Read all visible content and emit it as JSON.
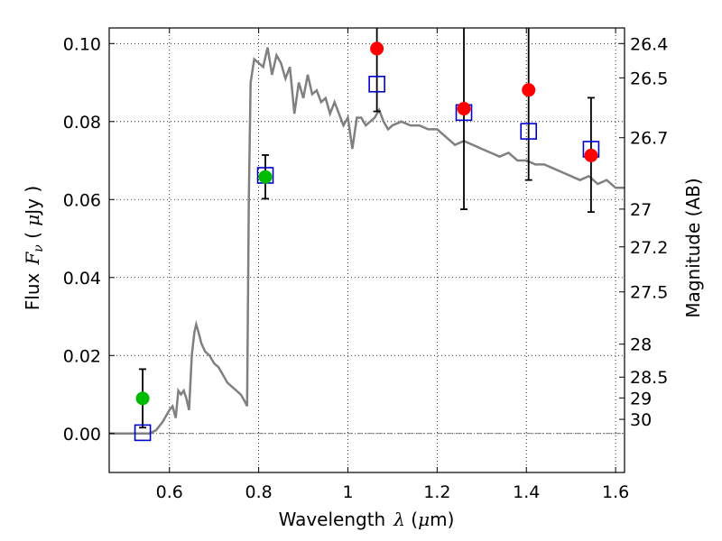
{
  "chart_data": {
    "type": "scatter",
    "xlabel": "Wavelength",
    "xlabel_symbol": "λ",
    "xlabel_unit_open": " (",
    "xlabel_unit_mu": "μ",
    "xlabel_unit_rest": "m)",
    "ylabel": "Flux",
    "ylabel_symbol": "F",
    "ylabel_subscript": "ν",
    "ylabel_unit_open": " ( ",
    "ylabel_unit_mu": "μ",
    "ylabel_unit_rest": "Jy )",
    "y2label": "Magnitude (AB)",
    "xlim": [
      0.465,
      1.62
    ],
    "ylim": [
      -0.01,
      0.104
    ],
    "grid": true,
    "x_ticks": [
      {
        "value": 0.6,
        "label": "0.6"
      },
      {
        "value": 0.8,
        "label": "0.8"
      },
      {
        "value": 1.0,
        "label": "1"
      },
      {
        "value": 1.2,
        "label": "1.2"
      },
      {
        "value": 1.4,
        "label": "1.4"
      },
      {
        "value": 1.6,
        "label": "1.6"
      }
    ],
    "y_ticks": [
      {
        "value": 0.0,
        "label": "0.00"
      },
      {
        "value": 0.02,
        "label": "0.02"
      },
      {
        "value": 0.04,
        "label": "0.04"
      },
      {
        "value": 0.06,
        "label": "0.06"
      },
      {
        "value": 0.08,
        "label": "0.08"
      },
      {
        "value": 0.1,
        "label": "0.10"
      }
    ],
    "y2_ticks": [
      {
        "value": 26.4,
        "label": "26.4"
      },
      {
        "value": 26.5,
        "label": "26.5"
      },
      {
        "value": 26.7,
        "label": "26.7"
      },
      {
        "value": 27.0,
        "label": "27"
      },
      {
        "value": 27.2,
        "label": "27.2"
      },
      {
        "value": 27.5,
        "label": "27.5"
      },
      {
        "value": 28.0,
        "label": "28"
      },
      {
        "value": 28.5,
        "label": "28.5"
      },
      {
        "value": 29.0,
        "label": "29"
      },
      {
        "value": 30.0,
        "label": "30"
      }
    ],
    "colors": {
      "model": "#808080",
      "green": "#00bb00",
      "red": "#ff0000",
      "square": "#0000cc",
      "errorbar": "#000000"
    },
    "model_spectrum": {
      "x": [
        0.465,
        0.54,
        0.555,
        0.57,
        0.585,
        0.6,
        0.607,
        0.614,
        0.62,
        0.626,
        0.632,
        0.638,
        0.644,
        0.65,
        0.656,
        0.66,
        0.665,
        0.672,
        0.68,
        0.69,
        0.7,
        0.71,
        0.72,
        0.73,
        0.74,
        0.75,
        0.76,
        0.77,
        0.774,
        0.778,
        0.782,
        0.79,
        0.8,
        0.81,
        0.82,
        0.83,
        0.84,
        0.85,
        0.86,
        0.87,
        0.88,
        0.89,
        0.9,
        0.91,
        0.92,
        0.93,
        0.94,
        0.95,
        0.96,
        0.97,
        0.98,
        0.99,
        1.0,
        1.01,
        1.02,
        1.03,
        1.04,
        1.05,
        1.06,
        1.07,
        1.08,
        1.09,
        1.1,
        1.12,
        1.14,
        1.16,
        1.18,
        1.2,
        1.22,
        1.24,
        1.26,
        1.28,
        1.3,
        1.32,
        1.34,
        1.36,
        1.38,
        1.4,
        1.42,
        1.44,
        1.46,
        1.48,
        1.5,
        1.52,
        1.54,
        1.56,
        1.58,
        1.6,
        1.62
      ],
      "y": [
        0.0,
        0.0,
        0.0,
        0.0008,
        0.003,
        0.006,
        0.007,
        0.004,
        0.011,
        0.01,
        0.011,
        0.009,
        0.006,
        0.02,
        0.026,
        0.028,
        0.026,
        0.023,
        0.021,
        0.02,
        0.018,
        0.017,
        0.015,
        0.013,
        0.012,
        0.011,
        0.01,
        0.008,
        0.007,
        0.06,
        0.09,
        0.096,
        0.095,
        0.094,
        0.099,
        0.092,
        0.097,
        0.095,
        0.091,
        0.094,
        0.082,
        0.09,
        0.086,
        0.092,
        0.087,
        0.088,
        0.085,
        0.086,
        0.082,
        0.085,
        0.082,
        0.079,
        0.081,
        0.073,
        0.081,
        0.081,
        0.079,
        0.08,
        0.081,
        0.083,
        0.08,
        0.078,
        0.079,
        0.08,
        0.079,
        0.079,
        0.078,
        0.078,
        0.076,
        0.074,
        0.075,
        0.074,
        0.073,
        0.072,
        0.071,
        0.072,
        0.07,
        0.07,
        0.069,
        0.069,
        0.068,
        0.067,
        0.066,
        0.065,
        0.066,
        0.064,
        0.065,
        0.063,
        0.063
      ]
    },
    "observed_green": [
      {
        "x": 0.54,
        "y": 0.009,
        "yerr": 0.0075
      },
      {
        "x": 0.815,
        "y": 0.0658,
        "yerr": 0.0056
      }
    ],
    "observed_red": [
      {
        "x": 1.065,
        "y": 0.0987,
        "ylo": 0.0826,
        "yhi": 0.104
      },
      {
        "x": 1.26,
        "y": 0.0833,
        "ylo": 0.0575,
        "yhi": 0.104
      },
      {
        "x": 1.405,
        "y": 0.0881,
        "ylo": 0.065,
        "yhi": 0.104
      },
      {
        "x": 1.545,
        "y": 0.0713,
        "ylo": 0.0568,
        "yhi": 0.0861
      }
    ],
    "model_photometry": [
      {
        "x": 0.54,
        "y": 0.0002
      },
      {
        "x": 0.815,
        "y": 0.0662
      },
      {
        "x": 1.065,
        "y": 0.0896
      },
      {
        "x": 1.26,
        "y": 0.0823
      },
      {
        "x": 1.405,
        "y": 0.0775
      },
      {
        "x": 1.545,
        "y": 0.0729
      }
    ]
  }
}
